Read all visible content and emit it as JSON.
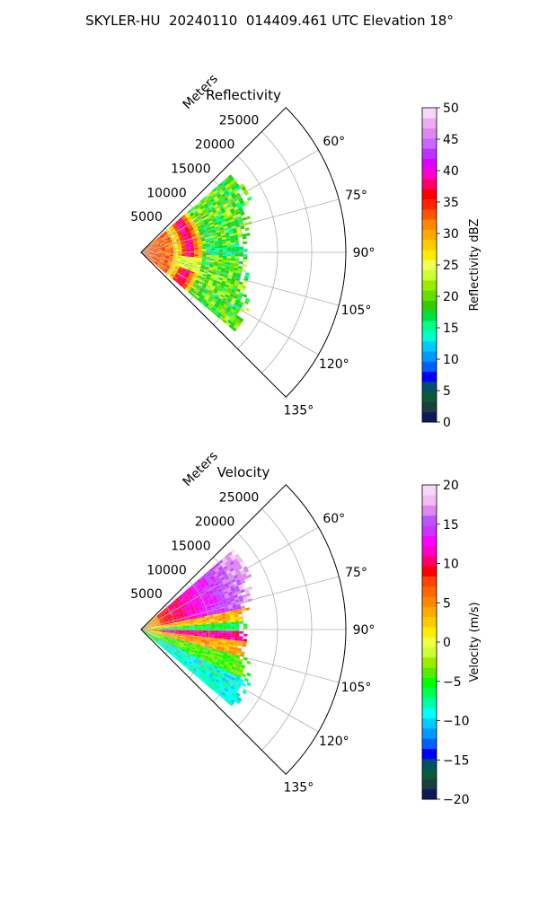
{
  "figure": {
    "title": "SKYLER-HU  20240110  014409.461 UTC Elevation 18°"
  },
  "chart_data": [
    {
      "type": "heatmap",
      "subtype": "radar-ppi-sector",
      "title": "Reflectivity",
      "range_label": "Meters",
      "range_ticks": [
        5000,
        10000,
        15000,
        20000,
        25000
      ],
      "range_max": 30000,
      "data_range_max": 18000,
      "azimuth_ticks": [
        60,
        75,
        90,
        105,
        120,
        135
      ],
      "azimuth_range": [
        45,
        135
      ],
      "grid": true,
      "colorbar": {
        "label": "Reflectivity dBZ",
        "min": 0,
        "max": 50,
        "ticks": [
          0,
          5,
          10,
          15,
          20,
          25,
          30,
          35,
          40,
          45,
          50
        ],
        "colors": [
          "#0b1a5c",
          "#1a3d3d",
          "#0a5a3a",
          "#004f6e",
          "#0000ff",
          "#0060ff",
          "#0099ff",
          "#00ccff",
          "#00ffcc",
          "#00ff88",
          "#00e040",
          "#33cc00",
          "#66dd00",
          "#99ee00",
          "#ccff33",
          "#eeff55",
          "#ffee00",
          "#ffcc00",
          "#ffaa00",
          "#ff8800",
          "#ff5500",
          "#ff2200",
          "#ff0000",
          "#ff0066",
          "#ff00cc",
          "#dd00ff",
          "#bb33ff",
          "#cc66ff",
          "#dd88ee",
          "#eeaaf2",
          "#f8d8f8"
        ]
      },
      "description_bands": [
        {
          "range_start": 0,
          "range_end": 5000,
          "dbz": 31
        },
        {
          "range_start": 5000,
          "range_end": 9000,
          "dbz": 36
        },
        {
          "range_start": 9000,
          "range_end": 18000,
          "dbz": 19
        }
      ]
    },
    {
      "type": "heatmap",
      "subtype": "radar-ppi-sector",
      "title": "Velocity",
      "range_label": "Meters",
      "range_ticks": [
        5000,
        10000,
        15000,
        20000,
        25000
      ],
      "range_max": 30000,
      "data_range_max": 18000,
      "azimuth_ticks": [
        60,
        75,
        90,
        105,
        120,
        135
      ],
      "azimuth_range": [
        45,
        135
      ],
      "grid": true,
      "colorbar": {
        "label": "Velocity (m/s)",
        "min": -20,
        "max": 20,
        "ticks": [
          -20,
          -15,
          -10,
          -5,
          0,
          5,
          10,
          15,
          20
        ],
        "colors": [
          "#0b1a5c",
          "#1a3d3d",
          "#0a5a3a",
          "#004f6e",
          "#0000ff",
          "#0060ff",
          "#0099ff",
          "#00ccff",
          "#00ffff",
          "#00ffaa",
          "#00ff55",
          "#00ff00",
          "#55ee00",
          "#99ee00",
          "#ccff33",
          "#eeff44",
          "#ffee00",
          "#ffcc00",
          "#ffaa00",
          "#ff8800",
          "#ff6600",
          "#ff4400",
          "#ff0000",
          "#ff0066",
          "#ff00cc",
          "#ff00ff",
          "#cc33ff",
          "#bb55ff",
          "#dd88ee",
          "#f2bbf2",
          "#f8d8f8"
        ]
      }
    }
  ]
}
